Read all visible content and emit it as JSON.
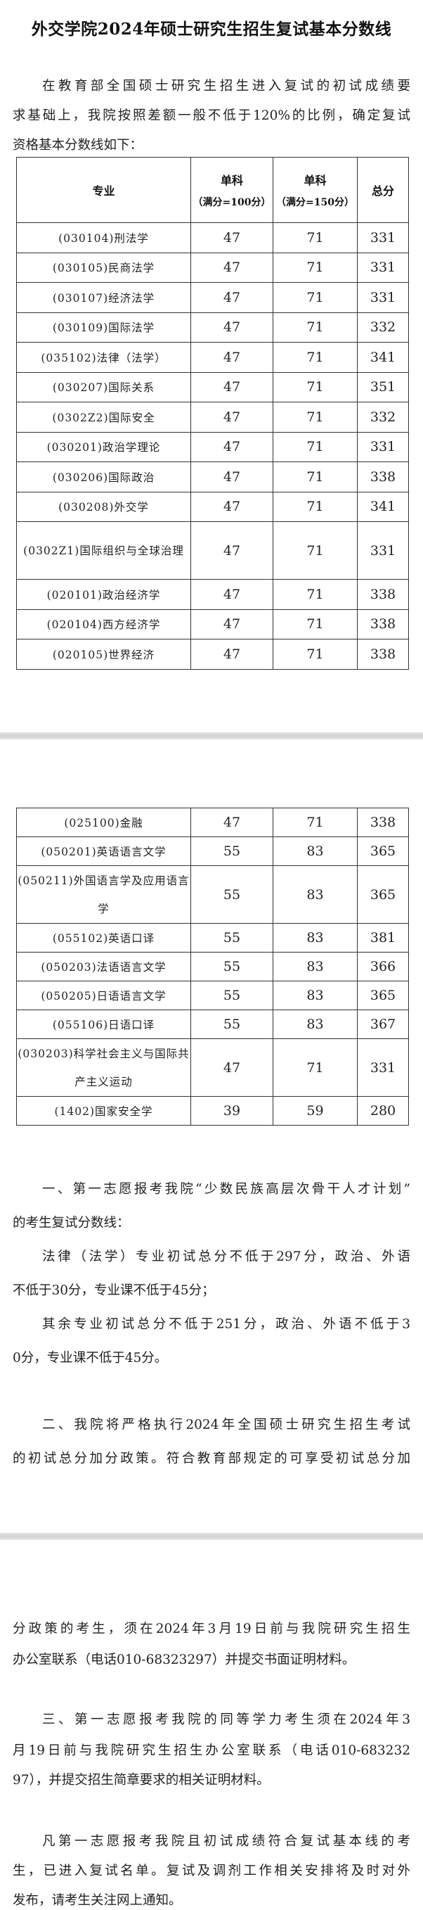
{
  "title": "外交学院2024年硕士研究生招生复试基本分数线",
  "intro_lines": [
    "在教育部全国硕士研究生招生进入复试的初试成绩要",
    "求基础上，我院按照差额一般不低于120%的比例，确定复试",
    "资格基本分数线如下："
  ],
  "table": {
    "headers": {
      "major": "专业",
      "single100": "单科",
      "single100_note": "（满分=100分）",
      "single150": "单科",
      "single150_note": "（满分=150分）",
      "total": "总分"
    },
    "rows_part1": [
      {
        "major": "(030104)刑法学",
        "s100": "47",
        "s150": "71",
        "total": "331"
      },
      {
        "major": "(030105)民商法学",
        "s100": "47",
        "s150": "71",
        "total": "331"
      },
      {
        "major": "(030107)经济法学",
        "s100": "47",
        "s150": "71",
        "total": "331"
      },
      {
        "major": "(030109)国际法学",
        "s100": "47",
        "s150": "71",
        "total": "332"
      },
      {
        "major": "(035102)法律（法学）",
        "s100": "47",
        "s150": "71",
        "total": "341"
      },
      {
        "major": "(030207)国际关系",
        "s100": "47",
        "s150": "71",
        "total": "351"
      },
      {
        "major": "(0302Z2)国际安全",
        "s100": "47",
        "s150": "71",
        "total": "332"
      },
      {
        "major": "(030201)政治学理论",
        "s100": "47",
        "s150": "71",
        "total": "331"
      },
      {
        "major": "(030206)国际政治",
        "s100": "47",
        "s150": "71",
        "total": "338"
      },
      {
        "major": "(030208)外交学",
        "s100": "47",
        "s150": "71",
        "total": "341"
      },
      {
        "major": "(0302Z1)国际组织与全球治理",
        "s100": "47",
        "s150": "71",
        "total": "331"
      },
      {
        "major": "(020101)政治经济学",
        "s100": "47",
        "s150": "71",
        "total": "338"
      },
      {
        "major": "(020104)西方经济学",
        "s100": "47",
        "s150": "71",
        "total": "338"
      },
      {
        "major": "(020105)世界经济",
        "s100": "47",
        "s150": "71",
        "total": "338"
      }
    ],
    "rows_part2": [
      {
        "major": "(025100)金融",
        "s100": "47",
        "s150": "71",
        "total": "338"
      },
      {
        "major": "(050201)英语语言文学",
        "s100": "55",
        "s150": "83",
        "total": "365"
      },
      {
        "major": "(050211)外国语言学及应用语言学",
        "s100": "55",
        "s150": "83",
        "total": "365"
      },
      {
        "major": "(055102)英语口译",
        "s100": "55",
        "s150": "83",
        "total": "381"
      },
      {
        "major": "(050203)法语语言文学",
        "s100": "55",
        "s150": "83",
        "total": "366"
      },
      {
        "major": "(050205)日语语言文学",
        "s100": "55",
        "s150": "83",
        "total": "365"
      },
      {
        "major": "(055106)日语口译",
        "s100": "55",
        "s150": "83",
        "total": "367"
      },
      {
        "major": "(030203)科学社会主义与国际共产主义运动",
        "s100": "47",
        "s150": "71",
        "total": "331"
      },
      {
        "major": "(1402)国家安全学",
        "s100": "39",
        "s150": "59",
        "total": "280"
      }
    ]
  },
  "section1_lines": [
    "一、第一志愿报考我院“少数民族高层次骨干人才计划”",
    "的考生复试分数线：",
    "法律（法学）专业初试总分不低于297分，政治、外语",
    "不低于30分，专业课不低于45分；",
    "其余专业初试总分不低于251分，政治、外语不低于3",
    "0分，专业课不低于45分。"
  ],
  "section2_lines_part1": [
    "二、我院将严格执行2024年全国硕士研究生招生考试",
    "的初试总分加分政策。符合教育部规定的可享受初试总分加"
  ],
  "section2_lines_part2": [
    "分政策的考生，须在2024年3月19日前与我院研究生招生",
    "办公室联系（电话010-68323297）并提交书面证明材料。"
  ],
  "section3_lines": [
    "三、第一志愿报考我院的同等学力考生须在2024年3",
    "月19日前与我院研究生招生办公室联系（电话010-683232",
    "97），并提交招生简章要求的相关证明材料。"
  ],
  "closing_lines": [
    "凡第一志愿报考我院且初试成绩符合复试基本线的考",
    "生，已进入复试名单。复试及调剂工作相关安排将及时对外",
    "发布，请考生关注网上通知。"
  ]
}
